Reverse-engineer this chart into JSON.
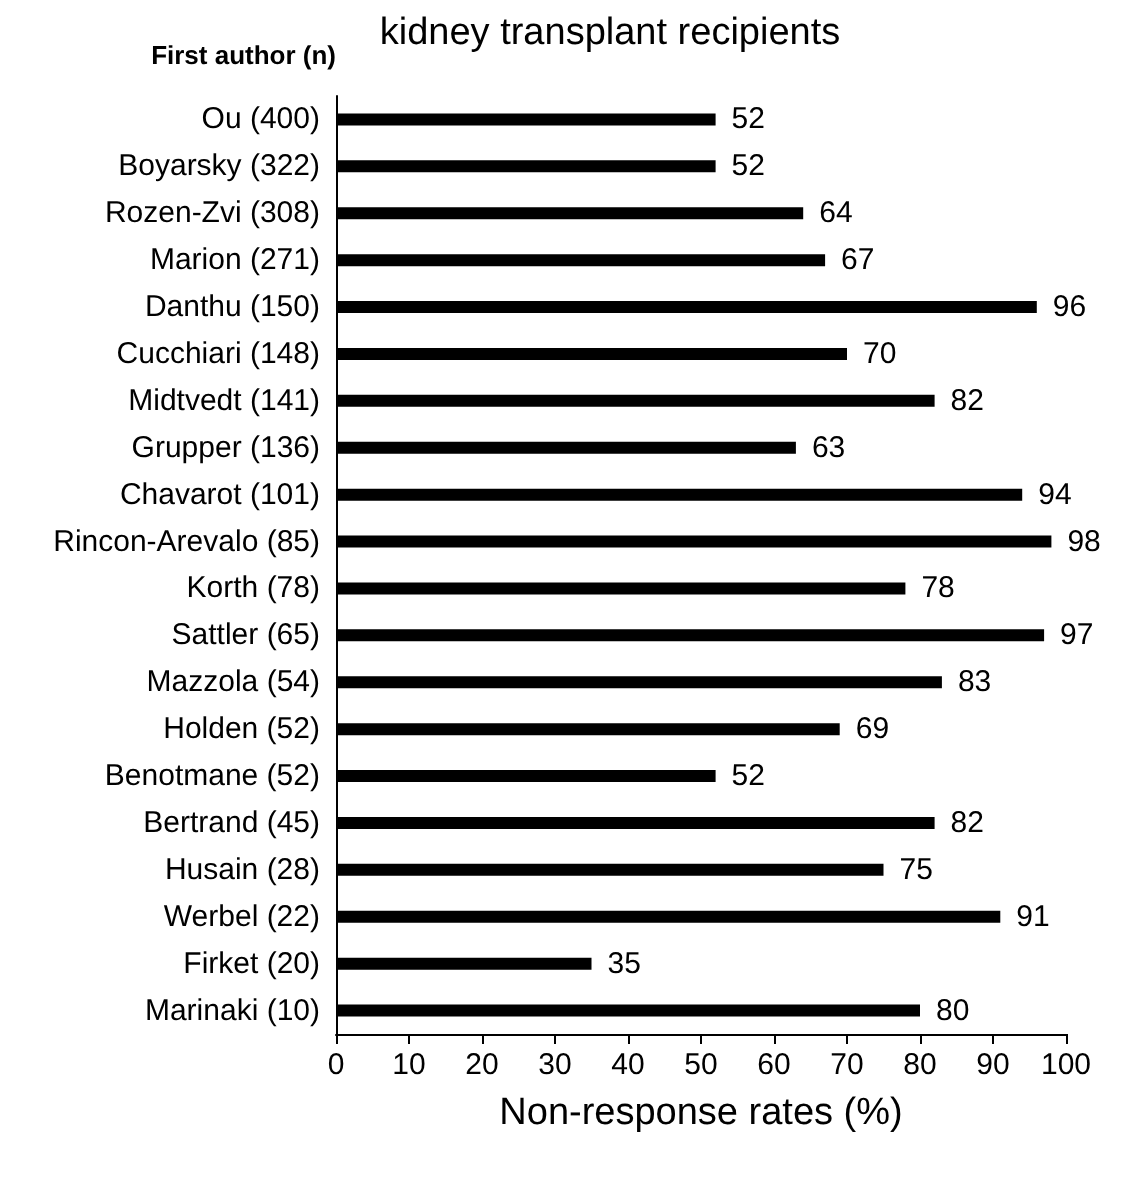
{
  "chart_data": {
    "type": "bar",
    "orientation": "horizontal",
    "title": "kidney transplant recipients",
    "ylabel": "First author (n)",
    "xlabel": "Non-response rates (%)",
    "categories": [
      "Ou (400)",
      "Boyarsky (322)",
      "Rozen-Zvi (308)",
      "Marion (271)",
      "Danthu (150)",
      "Cucchiari (148)",
      "Midtvedt (141)",
      "Grupper (136)",
      "Chavarot (101)",
      "Rincon-Arevalo (85)",
      "Korth (78)",
      "Sattler (65)",
      "Mazzola (54)",
      "Holden (52)",
      "Benotmane (52)",
      "Bertrand (45)",
      "Husain (28)",
      "Werbel (22)",
      "Firket (20)",
      "Marinaki (10)"
    ],
    "values": [
      52,
      52,
      64,
      67,
      96,
      70,
      82,
      63,
      94,
      98,
      78,
      97,
      83,
      69,
      52,
      82,
      75,
      91,
      35,
      80
    ],
    "color": "#000000",
    "xlim": [
      0,
      100
    ],
    "xticks": [
      0,
      10,
      20,
      30,
      40,
      50,
      60,
      70,
      80,
      90,
      100
    ],
    "data_labels": true
  }
}
